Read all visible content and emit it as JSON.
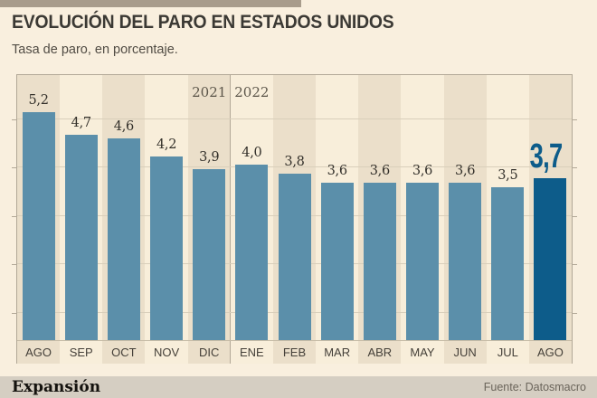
{
  "header": {
    "title": "EVOLUCIÓN DEL PARO EN ESTADOS UNIDOS",
    "subtitle": "Tasa de paro, en porcentaje."
  },
  "chart_data": {
    "type": "bar",
    "title": "EVOLUCIÓN DEL PARO EN ESTADOS UNIDOS",
    "subtitle": "Tasa de paro, en porcentaje.",
    "unit": "percent",
    "categories": [
      "AGO",
      "SEP",
      "OCT",
      "NOV",
      "DIC",
      "ENE",
      "FEB",
      "MAR",
      "ABR",
      "MAY",
      "JUN",
      "JUL",
      "AGO"
    ],
    "values": [
      5.2,
      4.7,
      4.6,
      4.2,
      3.9,
      4.0,
      3.8,
      3.6,
      3.6,
      3.6,
      3.6,
      3.5,
      3.7
    ],
    "value_labels": [
      "5,2",
      "4,7",
      "4,6",
      "4,2",
      "3,9",
      "4,0",
      "3,8",
      "3,6",
      "3,6",
      "3,6",
      "3,6",
      "3,5",
      "3,7"
    ],
    "years": [
      {
        "label": "2021",
        "column": 4
      },
      {
        "label": "2022",
        "column": 5
      }
    ],
    "divider_after_column": 4,
    "highlight_index": 12,
    "ylim": [
      0,
      6
    ],
    "grid": true,
    "legend": false,
    "bar_color": "#5b8faa",
    "highlight_color": "#0d5c8a"
  },
  "footer": {
    "brand": "Expansión",
    "source": "Fuente: Datosmacro"
  }
}
